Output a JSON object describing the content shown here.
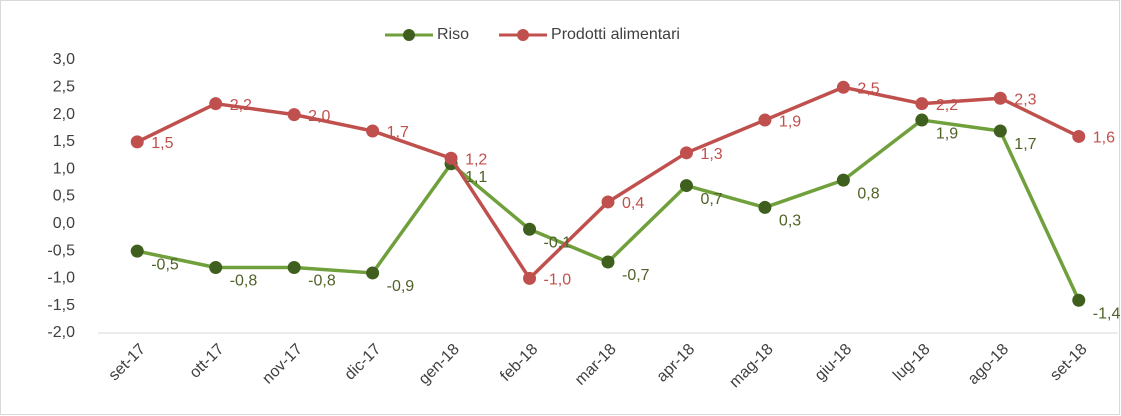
{
  "chart_data": {
    "type": "line",
    "categories": [
      "set-17",
      "ott-17",
      "nov-17",
      "dic-17",
      "gen-18",
      "feb-18",
      "mar-18",
      "apr-18",
      "mag-18",
      "giu-18",
      "lug-18",
      "ago-18",
      "set-18"
    ],
    "series": [
      {
        "name": "Riso",
        "color": "#70a03c",
        "marker_color": "#3f5f1f",
        "label_color": "#4f6228",
        "values": [
          -0.5,
          -0.8,
          -0.8,
          -0.9,
          1.1,
          -0.1,
          -0.7,
          0.7,
          0.3,
          0.8,
          1.9,
          1.7,
          -1.4
        ],
        "value_labels": [
          "-0,5",
          "-0,8",
          "-0,8",
          "-0,9",
          "1,1",
          "-0,1",
          "-0,7",
          "0,7",
          "0,3",
          "0,8",
          "1,9",
          "1,7",
          "-1,4"
        ]
      },
      {
        "name": "Prodotti alimentari",
        "color": "#c0504d",
        "marker_color": "#c0504d",
        "label_color": "#c0504d",
        "values": [
          1.5,
          2.2,
          2.0,
          1.7,
          1.2,
          -1.0,
          0.4,
          1.3,
          1.9,
          2.5,
          2.2,
          2.3,
          1.6
        ],
        "value_labels": [
          "1,5",
          "2,2",
          "2,0",
          "1,7",
          "1,2",
          "-1,0",
          "0,4",
          "1,3",
          "1,9",
          "2,5",
          "2,2",
          "2,3",
          "1,6"
        ]
      }
    ],
    "ylim": [
      -2.0,
      3.0
    ],
    "yticks": [
      {
        "value": -2.0,
        "label": "-2,0"
      },
      {
        "value": -1.5,
        "label": "-1,5"
      },
      {
        "value": -1.0,
        "label": "-1,0"
      },
      {
        "value": -0.5,
        "label": "-0,5"
      },
      {
        "value": 0,
        "label": "0,0"
      },
      {
        "value": 0.5,
        "label": "0,5"
      },
      {
        "value": 1.0,
        "label": "1,0"
      },
      {
        "value": 1.5,
        "label": "1,5"
      },
      {
        "value": 2.0,
        "label": "2,0"
      },
      {
        "value": 2.5,
        "label": "2,5"
      },
      {
        "value": 3.0,
        "label": "3,0"
      }
    ],
    "grid": false,
    "legend": "top"
  }
}
